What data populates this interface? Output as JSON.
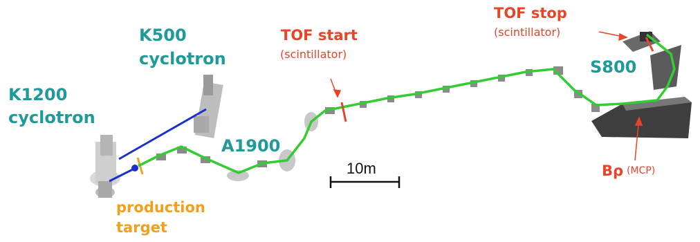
{
  "labels": {
    "k500_line1": "K500",
    "k500_line2": "cyclotron",
    "k1200_line1": "K1200",
    "k1200_line2": "cyclotron",
    "a1900": "A1900",
    "s800": "S800",
    "tof_start": "TOF start",
    "tof_start_sub": "(scintillator)",
    "tof_stop": "TOF stop",
    "tof_stop_sub": "(scintillator)",
    "brho": "Bρ",
    "brho_sub": "(MCP)",
    "target_line1": "production",
    "target_line2": "target",
    "scale": "10m"
  },
  "colors": {
    "teal": "#1f9a9a",
    "red": "#e8442a",
    "orange": "#f0a020",
    "beam": "#33cc33",
    "blue_line": "#1a2fd0",
    "magnet": "#8a8a8a"
  }
}
